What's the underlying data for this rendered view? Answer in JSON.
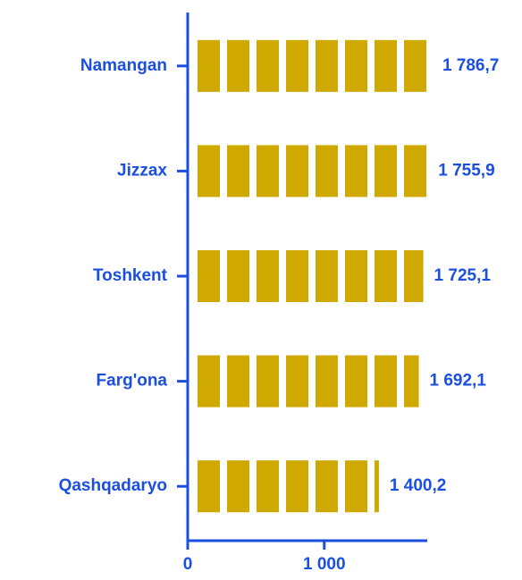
{
  "chart_data": {
    "type": "bar",
    "orientation": "horizontal",
    "categories": [
      "Namangan",
      "Jizzax",
      "Toshkent",
      "Farg'ona",
      "Qashqadaryo"
    ],
    "values": [
      1786.7,
      1755.9,
      1725.1,
      1692.1,
      1400.2
    ],
    "value_labels": [
      "1 786,7",
      "1 755,9",
      "1 725,1",
      "1 692,1",
      "1 400,2"
    ],
    "color": "#cfa800",
    "xlim": [
      0,
      1800
    ],
    "xticks": [
      0,
      {
        "value": 1000,
        "label": "1 000"
      }
    ]
  }
}
